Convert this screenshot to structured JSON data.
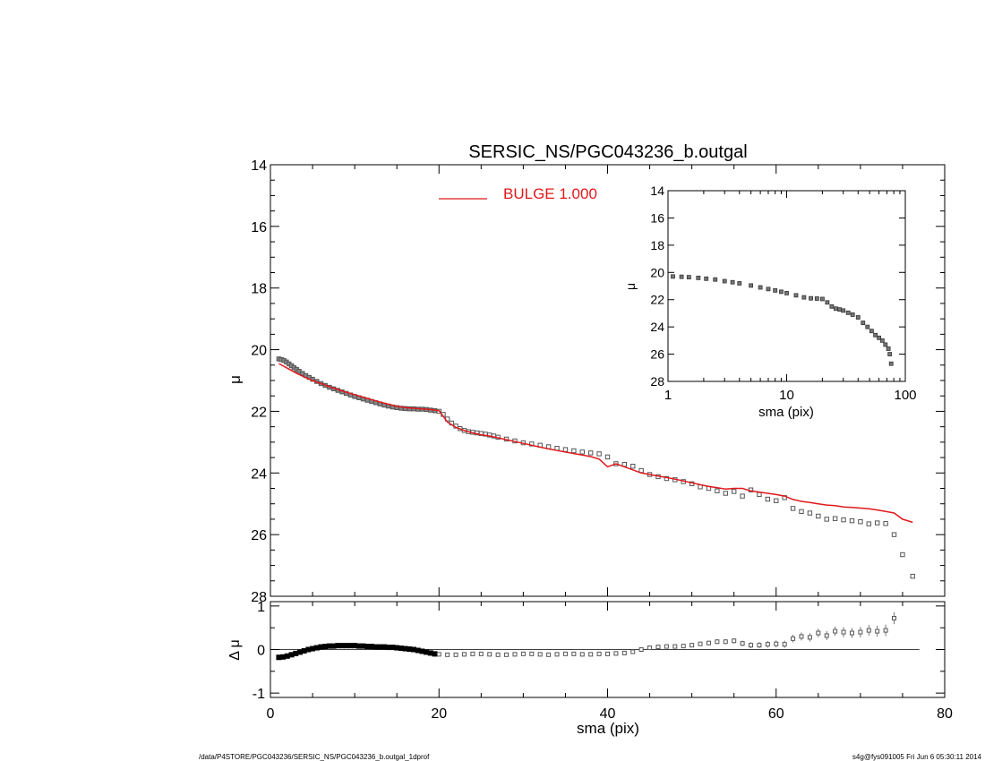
{
  "title": "SERSIC_NS/PGC043236_b.outgal",
  "footer": {
    "left": "/data/P4STORE/PGC043236/SERSIC_NS/PGC043236_b.outgal_1dprof",
    "right": "s4g@fys091005  Fri Jun  6 05:30:11 2014"
  },
  "colors": {
    "model": "#e0191c",
    "data": "#555555",
    "axis": "#000000"
  },
  "chart_data": [
    {
      "id": "main",
      "type": "scatter",
      "xlabel": "",
      "ylabel": "μ",
      "xlim": [
        0,
        80
      ],
      "ylim": [
        28,
        14
      ],
      "y_inverted": true,
      "yticks": [
        14,
        16,
        18,
        20,
        22,
        24,
        26,
        28
      ],
      "xticks": [
        0,
        20,
        40,
        60,
        80
      ],
      "legend": {
        "placement": "top-center",
        "entries": [
          {
            "label": "BULGE  1.000",
            "color": "#e0191c"
          }
        ]
      },
      "series": [
        {
          "name": "data",
          "marker": "square",
          "x": [
            1,
            1.3,
            1.6,
            1.9,
            2.2,
            2.5,
            2.8,
            3.1,
            3.4,
            3.8,
            4.2,
            4.6,
            5,
            5.5,
            6,
            6.5,
            7,
            7.5,
            8,
            8.5,
            9,
            9.5,
            10,
            10.5,
            11,
            11.5,
            12,
            12.5,
            13,
            13.5,
            14,
            14.5,
            15,
            15.5,
            16,
            16.5,
            17,
            17.5,
            18,
            18.5,
            19,
            19.5,
            20,
            20.5,
            21,
            21.5,
            22,
            22.5,
            23,
            23.5,
            24,
            24.5,
            25,
            25.5,
            26,
            26.5,
            27,
            28,
            29,
            30,
            31,
            32,
            33,
            34,
            35,
            36,
            37,
            38,
            39,
            40,
            41,
            42,
            43,
            44,
            45,
            46,
            47,
            48,
            49,
            50,
            51,
            52,
            53,
            54,
            55,
            56,
            57,
            58,
            59,
            60,
            61,
            62,
            63,
            64,
            65,
            66,
            67,
            68,
            69,
            70,
            71,
            72,
            73,
            74,
            75,
            76.2
          ],
          "y": [
            20.3,
            20.32,
            20.35,
            20.4,
            20.46,
            20.52,
            20.58,
            20.64,
            20.7,
            20.77,
            20.84,
            20.9,
            20.96,
            21.03,
            21.1,
            21.16,
            21.22,
            21.27,
            21.32,
            21.37,
            21.42,
            21.47,
            21.52,
            21.56,
            21.6,
            21.64,
            21.68,
            21.72,
            21.76,
            21.8,
            21.83,
            21.86,
            21.88,
            21.9,
            21.91,
            21.92,
            21.92,
            21.93,
            21.93,
            21.94,
            21.96,
            21.98,
            22.0,
            22.1,
            22.25,
            22.38,
            22.48,
            22.56,
            22.62,
            22.66,
            22.68,
            22.7,
            22.72,
            22.74,
            22.77,
            22.8,
            22.84,
            22.9,
            22.96,
            23.02,
            23.06,
            23.1,
            23.15,
            23.2,
            23.24,
            23.28,
            23.32,
            23.35,
            23.38,
            23.48,
            23.7,
            23.72,
            23.78,
            23.92,
            24.05,
            24.12,
            24.18,
            24.22,
            24.28,
            24.35,
            24.45,
            24.5,
            24.58,
            24.66,
            24.6,
            24.75,
            24.55,
            24.7,
            24.85,
            24.9,
            24.8,
            25.15,
            25.25,
            25.3,
            25.4,
            25.5,
            25.48,
            25.52,
            25.55,
            25.58,
            25.65,
            25.62,
            25.64,
            26.0,
            26.65,
            27.35
          ]
        },
        {
          "name": "model",
          "marker": "line",
          "x": [
            1,
            2,
            3,
            4,
            5,
            6,
            7,
            8,
            9,
            10,
            11,
            12,
            13,
            14,
            15,
            16,
            17,
            18,
            19,
            20,
            21,
            22,
            23,
            24,
            25,
            26,
            27,
            28,
            29,
            30,
            31,
            32,
            33,
            34,
            35,
            36,
            37,
            38,
            39,
            40,
            41,
            42,
            43,
            44,
            45,
            46,
            47,
            48,
            49,
            50,
            51,
            52,
            53,
            54,
            55,
            56,
            57,
            58,
            59,
            60,
            61,
            62,
            63,
            64,
            65,
            66,
            67,
            68,
            69,
            70,
            71,
            72,
            73,
            74,
            75,
            76.2
          ],
          "y": [
            20.45,
            20.6,
            20.75,
            20.88,
            21.0,
            21.1,
            21.2,
            21.29,
            21.38,
            21.46,
            21.54,
            21.62,
            21.7,
            21.77,
            21.84,
            21.88,
            21.9,
            21.92,
            21.94,
            21.98,
            22.35,
            22.52,
            22.62,
            22.7,
            22.76,
            22.8,
            22.86,
            22.92,
            22.98,
            23.04,
            23.1,
            23.16,
            23.22,
            23.27,
            23.32,
            23.37,
            23.42,
            23.47,
            23.55,
            23.8,
            23.7,
            23.8,
            23.9,
            24.0,
            24.05,
            24.1,
            24.15,
            24.2,
            24.26,
            24.32,
            24.38,
            24.44,
            24.48,
            24.52,
            24.5,
            24.5,
            24.58,
            24.62,
            24.66,
            24.7,
            24.75,
            24.86,
            24.92,
            24.96,
            25.0,
            25.04,
            25.06,
            25.1,
            25.12,
            25.14,
            25.16,
            25.2,
            25.25,
            25.3,
            25.5,
            25.6
          ]
        }
      ]
    },
    {
      "id": "inset",
      "type": "scatter",
      "xlabel": "sma (pix)",
      "ylabel": "μ",
      "xscale": "log",
      "xlim": [
        1,
        100
      ],
      "ylim": [
        28,
        14
      ],
      "y_inverted": true,
      "yticks": [
        14,
        16,
        18,
        20,
        22,
        24,
        26,
        28
      ],
      "xticks": [
        1,
        10,
        100
      ],
      "series": [
        {
          "name": "data",
          "marker": "square",
          "x": [
            1.1,
            1.3,
            1.5,
            1.8,
            2.1,
            2.5,
            3,
            3.5,
            4,
            5,
            6,
            7,
            8,
            9,
            10,
            12,
            14,
            16,
            18,
            20,
            22,
            24,
            26,
            28,
            30,
            33,
            36,
            40,
            44,
            48,
            52,
            56,
            60,
            64,
            68,
            72,
            74,
            76
          ],
          "y": [
            20.3,
            20.32,
            20.35,
            20.4,
            20.46,
            20.52,
            20.64,
            20.72,
            20.8,
            20.96,
            21.1,
            21.22,
            21.32,
            21.42,
            21.52,
            21.68,
            21.83,
            21.9,
            21.92,
            21.95,
            22.2,
            22.5,
            22.66,
            22.72,
            22.8,
            22.96,
            23.1,
            23.3,
            23.7,
            24.0,
            24.3,
            24.6,
            24.8,
            25.0,
            25.3,
            25.6,
            26.0,
            26.7
          ]
        }
      ]
    },
    {
      "id": "residual",
      "type": "scatter",
      "xlabel": "sma (pix)",
      "ylabel": "Δ μ",
      "xlim": [
        0,
        80
      ],
      "ylim": [
        -1.1,
        1.1
      ],
      "yticks": [
        1,
        0,
        -1
      ],
      "xticks": [
        0,
        20,
        40,
        60,
        80
      ],
      "series": [
        {
          "name": "residual",
          "marker": "square",
          "x": [
            1,
            1.5,
            2,
            2.5,
            3,
            3.5,
            4,
            4.5,
            5,
            5.5,
            6,
            6.5,
            7,
            7.5,
            8,
            8.5,
            9,
            9.5,
            10,
            10.5,
            11,
            11.5,
            12,
            12.5,
            13,
            13.5,
            14,
            14.5,
            15,
            15.5,
            16,
            16.5,
            17,
            17.5,
            18,
            18.5,
            19,
            19.5,
            20,
            21,
            22,
            23,
            24,
            25,
            26,
            27,
            28,
            29,
            30,
            31,
            32,
            33,
            34,
            35,
            36,
            37,
            38,
            39,
            40,
            41,
            42,
            43,
            44,
            45,
            46,
            47,
            48,
            49,
            50,
            51,
            52,
            53,
            54,
            55,
            56,
            57,
            58,
            59,
            60,
            61,
            62,
            63,
            64,
            65,
            66,
            67,
            68,
            69,
            70,
            71,
            72,
            73,
            74
          ],
          "y": [
            -0.18,
            -0.17,
            -0.15,
            -0.12,
            -0.09,
            -0.06,
            -0.03,
            0.0,
            0.02,
            0.04,
            0.06,
            0.07,
            0.08,
            0.08,
            0.09,
            0.09,
            0.09,
            0.09,
            0.09,
            0.08,
            0.08,
            0.07,
            0.07,
            0.06,
            0.06,
            0.06,
            0.05,
            0.05,
            0.04,
            0.03,
            0.02,
            0.01,
            0.0,
            -0.02,
            -0.04,
            -0.06,
            -0.08,
            -0.1,
            -0.11,
            -0.12,
            -0.12,
            -0.11,
            -0.1,
            -0.1,
            -0.11,
            -0.12,
            -0.12,
            -0.11,
            -0.1,
            -0.1,
            -0.11,
            -0.12,
            -0.11,
            -0.1,
            -0.1,
            -0.11,
            -0.11,
            -0.1,
            -0.1,
            -0.09,
            -0.08,
            -0.05,
            0.0,
            0.04,
            0.06,
            0.07,
            0.07,
            0.08,
            0.1,
            0.13,
            0.15,
            0.18,
            0.18,
            0.2,
            0.14,
            0.1,
            0.1,
            0.12,
            0.13,
            0.12,
            0.25,
            0.3,
            0.28,
            0.38,
            0.32,
            0.42,
            0.4,
            0.38,
            0.4,
            0.44,
            0.42,
            0.44,
            0.72
          ]
        }
      ]
    }
  ]
}
